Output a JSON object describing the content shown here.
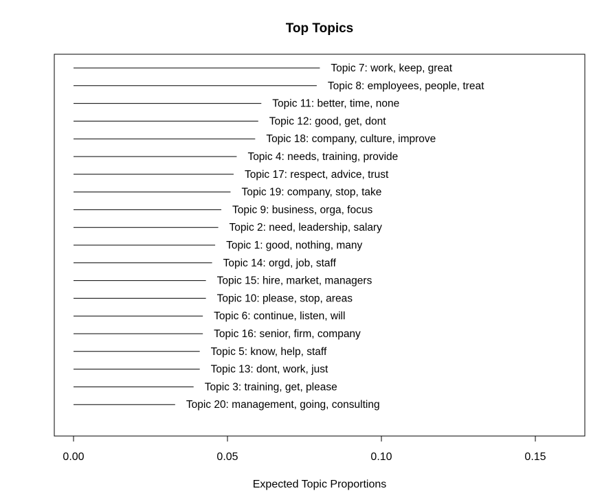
{
  "chart_data": {
    "type": "bar",
    "title": "Top Topics",
    "xlabel": "Expected Topic Proportions",
    "ylabel": "",
    "xlim": [
      0.0,
      0.165
    ],
    "xticks": [
      0.0,
      0.05,
      0.1,
      0.15
    ],
    "xtick_labels": [
      "0.00",
      "0.05",
      "0.10",
      "0.15"
    ],
    "grid": false,
    "legend": "none",
    "orientation": "horizontal",
    "categories": [
      "Topic 7: work, keep, great",
      "Topic 8: employees, people, treat",
      "Topic 11: better, time, none",
      "Topic 12: good, get, dont",
      "Topic 18: company, culture, improve",
      "Topic 4: needs, training, provide",
      "Topic 17: respect, advice, trust",
      "Topic 19: company, stop, take",
      "Topic 9: business, orga, focus",
      "Topic 2: need, leadership, salary",
      "Topic 1: good, nothing, many",
      "Topic 14: orgd, job, staff",
      "Topic 15: hire, market, managers",
      "Topic 10: please, stop, areas",
      "Topic 6: continue, listen, will",
      "Topic 16: senior, firm, company",
      "Topic 5: know, help, staff",
      "Topic 13: dont, work, just",
      "Topic 3: training, get, please",
      "Topic 20: management, going, consulting"
    ],
    "values": [
      0.08,
      0.079,
      0.061,
      0.06,
      0.059,
      0.053,
      0.052,
      0.051,
      0.048,
      0.047,
      0.046,
      0.045,
      0.043,
      0.043,
      0.042,
      0.042,
      0.041,
      0.041,
      0.039,
      0.033
    ]
  }
}
